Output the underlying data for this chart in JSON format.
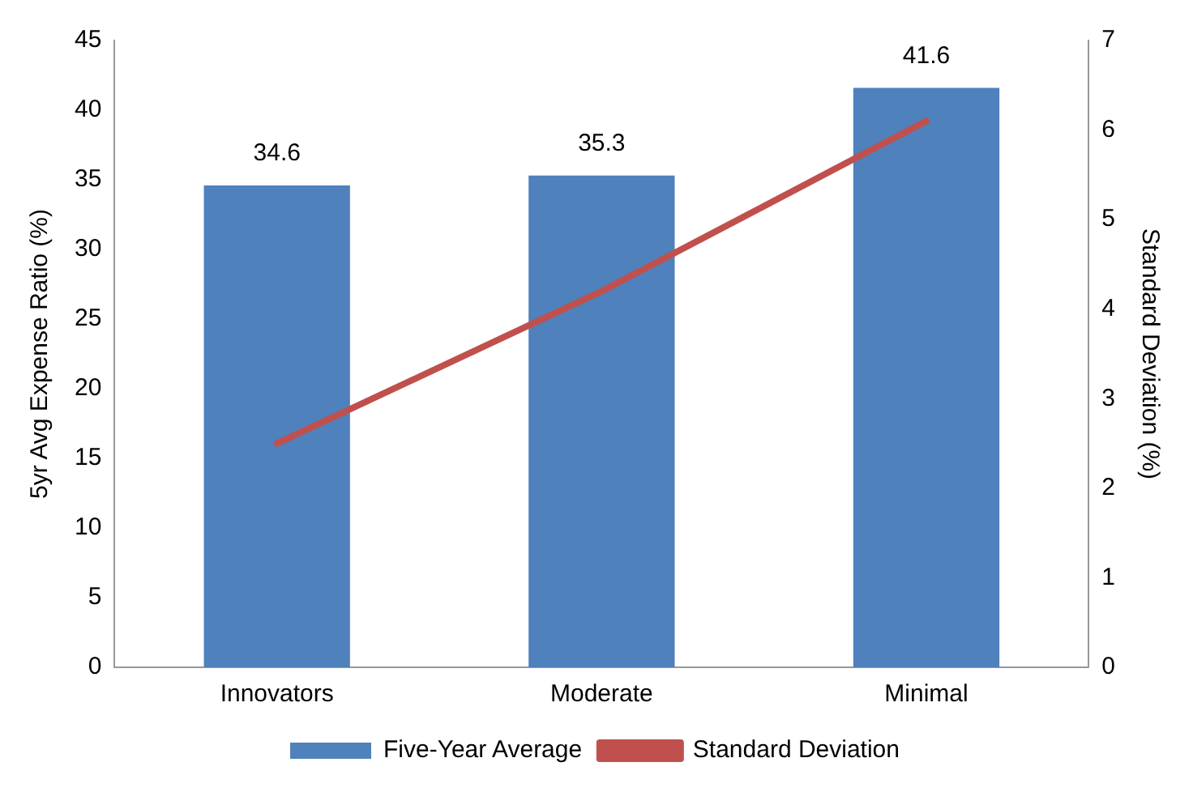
{
  "chart_data": {
    "type": "bar",
    "ylabel": "5yr Avg Expense Ratio (%)",
    "y2label": "Standard Deviation (%)",
    "categories": [
      "Innovators",
      "Moderate",
      "Minimal"
    ],
    "series": [
      {
        "name": "Five-Year Average",
        "color": "#4f81bd",
        "values": [
          34.6,
          35.3,
          41.6
        ],
        "value_labels": [
          "34.6",
          "35.3",
          "41.6"
        ]
      },
      {
        "name": "Standard Deviation",
        "type": "line",
        "color": "#c0504d",
        "axis": "y2",
        "values": [
          2.5,
          4.2,
          6.1
        ]
      }
    ],
    "ylim": [
      0,
      45
    ],
    "yticks": [
      0,
      5,
      10,
      15,
      20,
      25,
      30,
      35,
      40,
      45
    ],
    "y2lim": [
      0,
      7
    ],
    "y2ticks": [
      0,
      1,
      2,
      3,
      4,
      5,
      6,
      7
    ],
    "grid": false,
    "legend": "bottom",
    "marker": "none",
    "line_style": "solid"
  }
}
